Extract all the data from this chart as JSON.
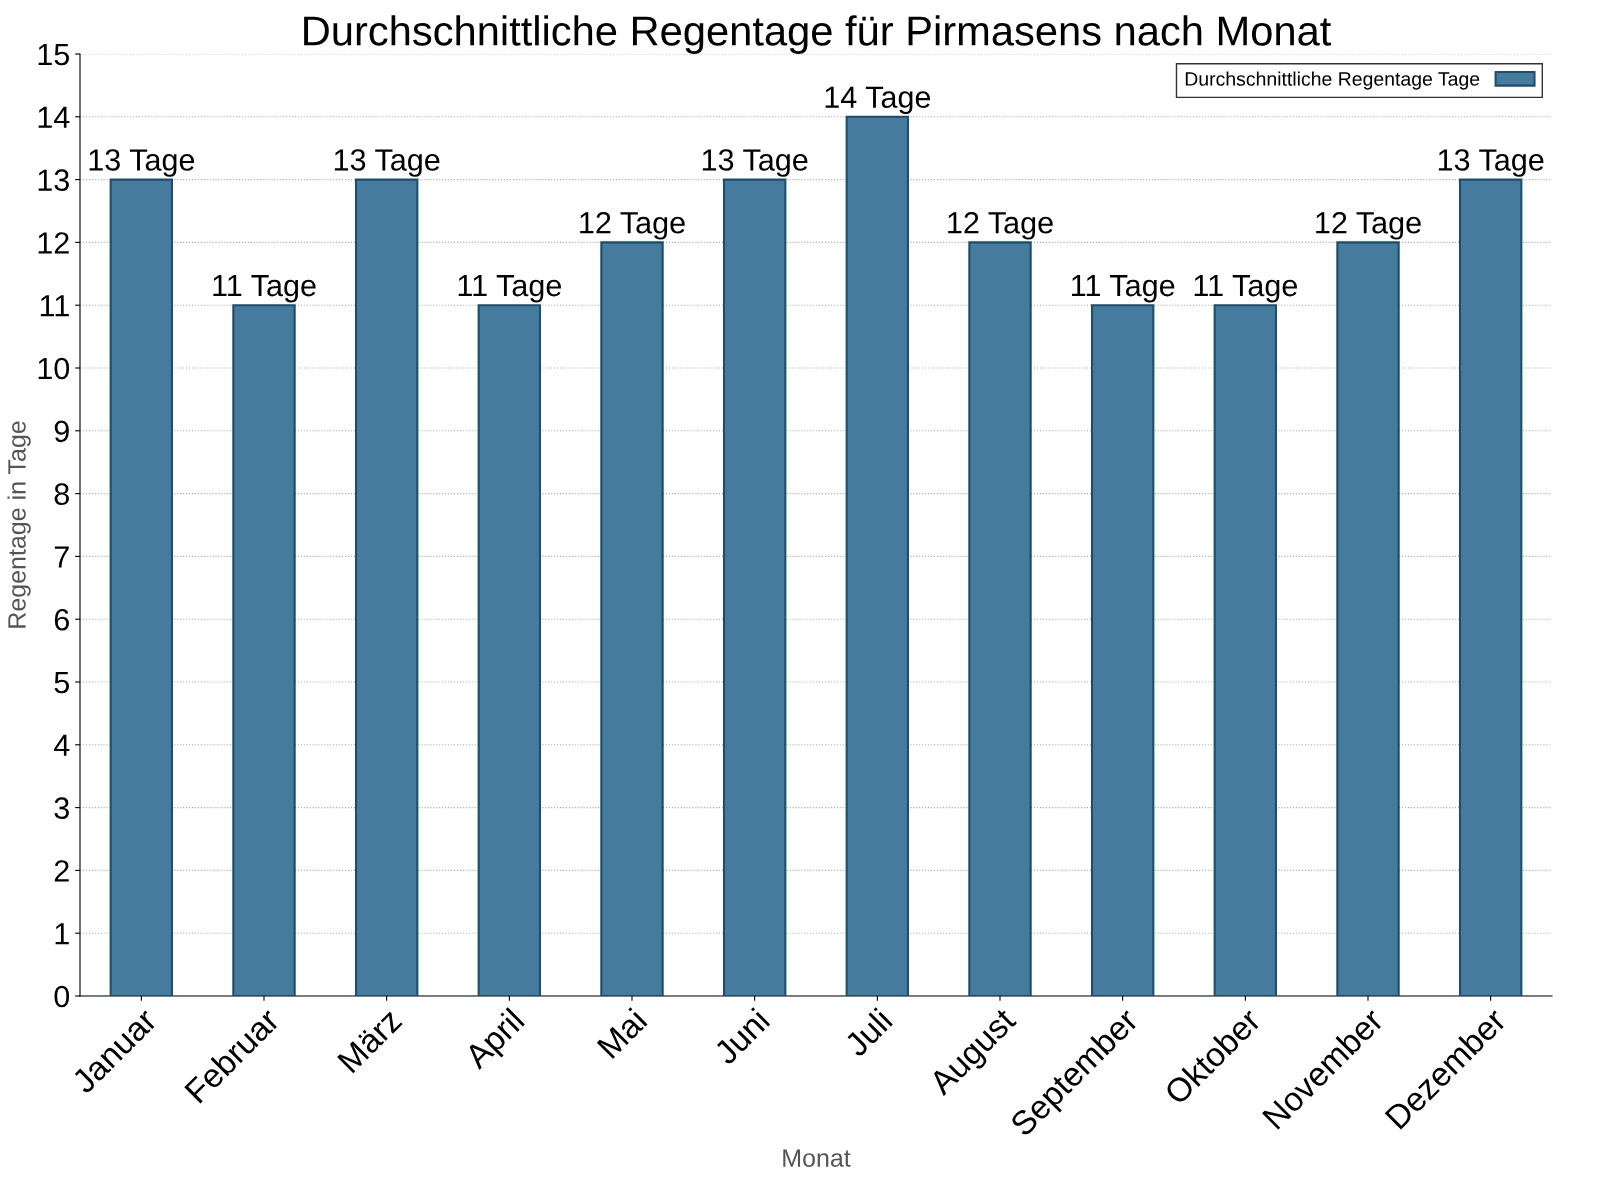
{
  "chart_data": {
    "type": "bar",
    "title": "Durchschnittliche Regentage für Pirmasens nach Monat",
    "xlabel": "Monat",
    "ylabel": "Regentage in Tage",
    "categories": [
      "Januar",
      "Februar",
      "März",
      "April",
      "Mai",
      "Juni",
      "Juli",
      "August",
      "September",
      "Oktober",
      "November",
      "Dezember"
    ],
    "series": [
      {
        "name": "Durchschnittliche Regentage Tage",
        "color": "#457b9d",
        "values": [
          13,
          11,
          13,
          11,
          12,
          13,
          14,
          12,
          11,
          11,
          12,
          13
        ],
        "value_labels": [
          "13 Tage",
          "11 Tage",
          "13 Tage",
          "11 Tage",
          "12 Tage",
          "13 Tage",
          "14 Tage",
          "12 Tage",
          "11 Tage",
          "11 Tage",
          "12 Tage",
          "13 Tage"
        ]
      }
    ],
    "ylim": [
      0,
      15
    ],
    "yticks": [
      0,
      1,
      2,
      3,
      4,
      5,
      6,
      7,
      8,
      9,
      10,
      11,
      12,
      13,
      14,
      15
    ],
    "grid": "y",
    "legend": "top right"
  }
}
